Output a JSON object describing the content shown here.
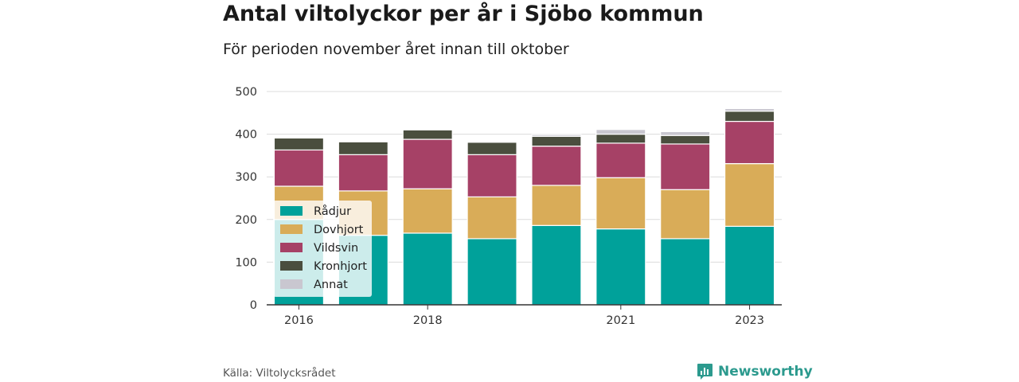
{
  "title": "Antal viltolyckor per år i Sjöbo kommun",
  "subtitle": "För perioden november året innan till oktober",
  "source": "Källa: Viltolycksrådet",
  "brand": {
    "name": "Newsworthy",
    "icon": "newsworthy-logo-icon",
    "color": "#2c9a8e"
  },
  "chart_data": {
    "type": "bar",
    "stacked": true,
    "title": "Antal viltolyckor per år i Sjöbo kommun",
    "subtitle": "För perioden november året innan till oktober",
    "categories": [
      "2016",
      "2017",
      "2018",
      "2019",
      "2020",
      "2021",
      "2022",
      "2023"
    ],
    "x_tick_labels": [
      "2016",
      "",
      "2018",
      "",
      "",
      "2021",
      "",
      "2023"
    ],
    "y_ticks": [
      0,
      100,
      200,
      300,
      400,
      500
    ],
    "ylim": [
      0,
      500
    ],
    "grid": true,
    "legend_position": "bottom-left",
    "series": [
      {
        "name": "Rådjur",
        "color": "#00a19a",
        "values": [
          200,
          163,
          168,
          155,
          186,
          178,
          155,
          184
        ]
      },
      {
        "name": "Dovhjort",
        "color": "#d9ac58",
        "values": [
          78,
          104,
          104,
          98,
          94,
          120,
          115,
          147
        ]
      },
      {
        "name": "Vildsvin",
        "color": "#a64166",
        "values": [
          85,
          85,
          116,
          99,
          92,
          81,
          107,
          99
        ]
      },
      {
        "name": "Kronhjort",
        "color": "#4a4e3e",
        "values": [
          28,
          30,
          22,
          29,
          23,
          21,
          20,
          24
        ]
      },
      {
        "name": "Annat",
        "color": "#c9c7d0",
        "values": [
          0,
          0,
          0,
          0,
          4,
          11,
          9,
          6
        ]
      }
    ]
  }
}
